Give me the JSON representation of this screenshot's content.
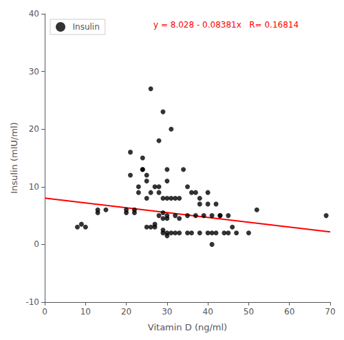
{
  "chart_data": {
    "type": "scatter",
    "xlabel": "Vitamin D (ng/ml)",
    "ylabel": "Insulin (mIU/ml)",
    "annotation": "y = 8.028 - 0.08381x   R= 0.16814",
    "xlim": [
      0,
      70
    ],
    "ylim": [
      -10,
      40
    ],
    "xticks": [
      0,
      10,
      20,
      30,
      40,
      50,
      60,
      70
    ],
    "yticks": [
      -10,
      0,
      10,
      20,
      30,
      40
    ],
    "grid": false,
    "legend": "upper left",
    "series": [
      {
        "name": "Insulin",
        "type": "scatter",
        "color": "black",
        "x": [
          8,
          9,
          10,
          13,
          13,
          15,
          20,
          20,
          21,
          21,
          22,
          22,
          23,
          23,
          24,
          24,
          24,
          25,
          25,
          25,
          25,
          26,
          26,
          26,
          27,
          27,
          27,
          28,
          28,
          28,
          28,
          29,
          29,
          29,
          29,
          29,
          29,
          30,
          30,
          30,
          30,
          30,
          30,
          30,
          31,
          31,
          31,
          32,
          32,
          32,
          33,
          33,
          33,
          34,
          35,
          35,
          35,
          36,
          36,
          37,
          37,
          38,
          38,
          38,
          39,
          40,
          40,
          40,
          41,
          41,
          41,
          42,
          42,
          43,
          43,
          44,
          45,
          45,
          46,
          47,
          50,
          52,
          69
        ],
        "values": [
          3,
          3.5,
          3,
          6,
          5.5,
          6,
          6,
          5.5,
          16,
          12,
          6,
          5.5,
          10,
          9,
          15,
          13,
          13,
          12,
          11,
          8,
          3,
          27,
          9,
          3,
          10,
          3.5,
          3,
          18,
          10,
          9,
          5,
          23,
          8,
          5.5,
          4.5,
          2.5,
          2,
          13,
          11,
          8,
          5,
          4.5,
          2,
          1.5,
          20,
          8,
          2,
          8,
          5,
          2,
          8,
          4.5,
          2,
          13,
          10,
          5,
          2,
          9,
          2,
          9,
          5,
          8,
          7,
          2,
          5,
          9,
          7,
          2,
          5,
          2,
          0,
          2,
          7,
          5,
          5,
          2,
          5,
          2,
          3,
          2,
          2,
          6,
          5
        ]
      },
      {
        "name": "Insulin",
        "type": "line",
        "color": "red",
        "x": [
          0,
          70
        ],
        "values": [
          8.028,
          2.1613
        ]
      }
    ]
  }
}
